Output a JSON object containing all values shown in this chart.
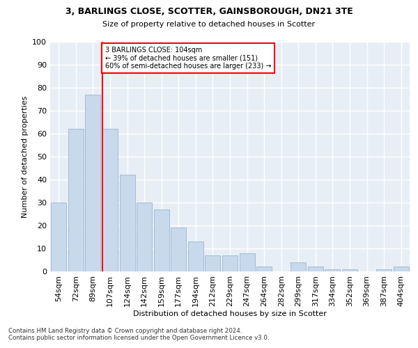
{
  "title1": "3, BARLINGS CLOSE, SCOTTER, GAINSBOROUGH, DN21 3TE",
  "title2": "Size of property relative to detached houses in Scotter",
  "xlabel": "Distribution of detached houses by size in Scotter",
  "ylabel": "Number of detached properties",
  "bar_color": "#c8d9ec",
  "bar_edge_color": "#a0bcd8",
  "background_color": "#e8eef5",
  "grid_color": "#ffffff",
  "categories": [
    "54sqm",
    "72sqm",
    "89sqm",
    "107sqm",
    "124sqm",
    "142sqm",
    "159sqm",
    "177sqm",
    "194sqm",
    "212sqm",
    "229sqm",
    "247sqm",
    "264sqm",
    "282sqm",
    "299sqm",
    "317sqm",
    "334sqm",
    "352sqm",
    "369sqm",
    "387sqm",
    "404sqm"
  ],
  "values": [
    30,
    62,
    77,
    62,
    42,
    30,
    27,
    19,
    13,
    7,
    7,
    8,
    2,
    0,
    4,
    2,
    1,
    1,
    0,
    1,
    2
  ],
  "annotation_line1": "3 BARLINGS CLOSE: 104sqm",
  "annotation_line2": "← 39% of detached houses are smaller (151)",
  "annotation_line3": "60% of semi-detached houses are larger (233) →",
  "ylim": [
    0,
    100
  ],
  "footnote1": "Contains HM Land Registry data © Crown copyright and database right 2024.",
  "footnote2": "Contains public sector information licensed under the Open Government Licence v3.0."
}
